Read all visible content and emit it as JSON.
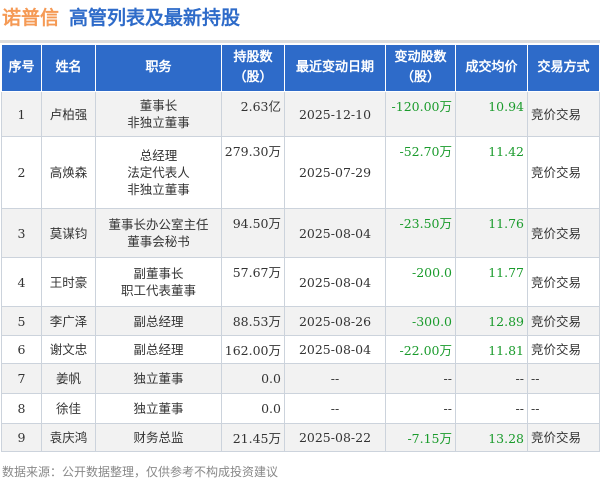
{
  "title": {
    "company": "诺普信",
    "subtitle": "高管列表及最新持股"
  },
  "headers": [
    "序号",
    "姓名",
    "职务",
    "持股数（股）",
    "最近变动日期",
    "变动股数（股）",
    "成交均价",
    "交易方式"
  ],
  "rows": [
    {
      "no": "1",
      "name": "卢柏强",
      "role": "董事长\n非独立董事",
      "shares": "2.63亿",
      "date": "2025-12-10",
      "change": "-120.00万",
      "price": "10.94",
      "method": "竞价交易"
    },
    {
      "no": "2",
      "name": "高焕森",
      "role": "总经理\n法定代表人\n非独立董事",
      "shares": "279.30万",
      "date": "2025-07-29",
      "change": "-52.70万",
      "price": "11.42",
      "method": "竞价交易"
    },
    {
      "no": "3",
      "name": "莫谋钧",
      "role": "董事长办公室主任\n董事会秘书",
      "shares": "94.50万",
      "date": "2025-08-04",
      "change": "-23.50万",
      "price": "11.76",
      "method": "竞价交易"
    },
    {
      "no": "4",
      "name": "王时豪",
      "role": "副董事长\n职工代表董事",
      "shares": "57.67万",
      "date": "2025-08-04",
      "change": "-200.0",
      "price": "11.77",
      "method": "竞价交易"
    },
    {
      "no": "5",
      "name": "李广泽",
      "role": "副总经理",
      "shares": "88.53万",
      "date": "2025-08-26",
      "change": "-300.0",
      "price": "12.89",
      "method": "竞价交易"
    },
    {
      "no": "6",
      "name": "谢文忠",
      "role": "副总经理",
      "shares": "162.00万",
      "date": "2025-08-04",
      "change": "-22.00万",
      "price": "11.81",
      "method": "竞价交易"
    },
    {
      "no": "7",
      "name": "姜帆",
      "role": "独立董事",
      "shares": "0.0",
      "date": "--",
      "change": "--",
      "price": "--",
      "method": "--"
    },
    {
      "no": "8",
      "name": "徐佳",
      "role": "独立董事",
      "shares": "0.0",
      "date": "--",
      "change": "--",
      "price": "--",
      "method": "--"
    },
    {
      "no": "9",
      "name": "袁庆鸿",
      "role": "财务总监",
      "shares": "21.45万",
      "date": "2025-08-22",
      "change": "-7.15万",
      "price": "13.28",
      "method": "竞价交易"
    }
  ],
  "footer": "数据来源：公开数据整理，仅供参考不构成投资建议"
}
